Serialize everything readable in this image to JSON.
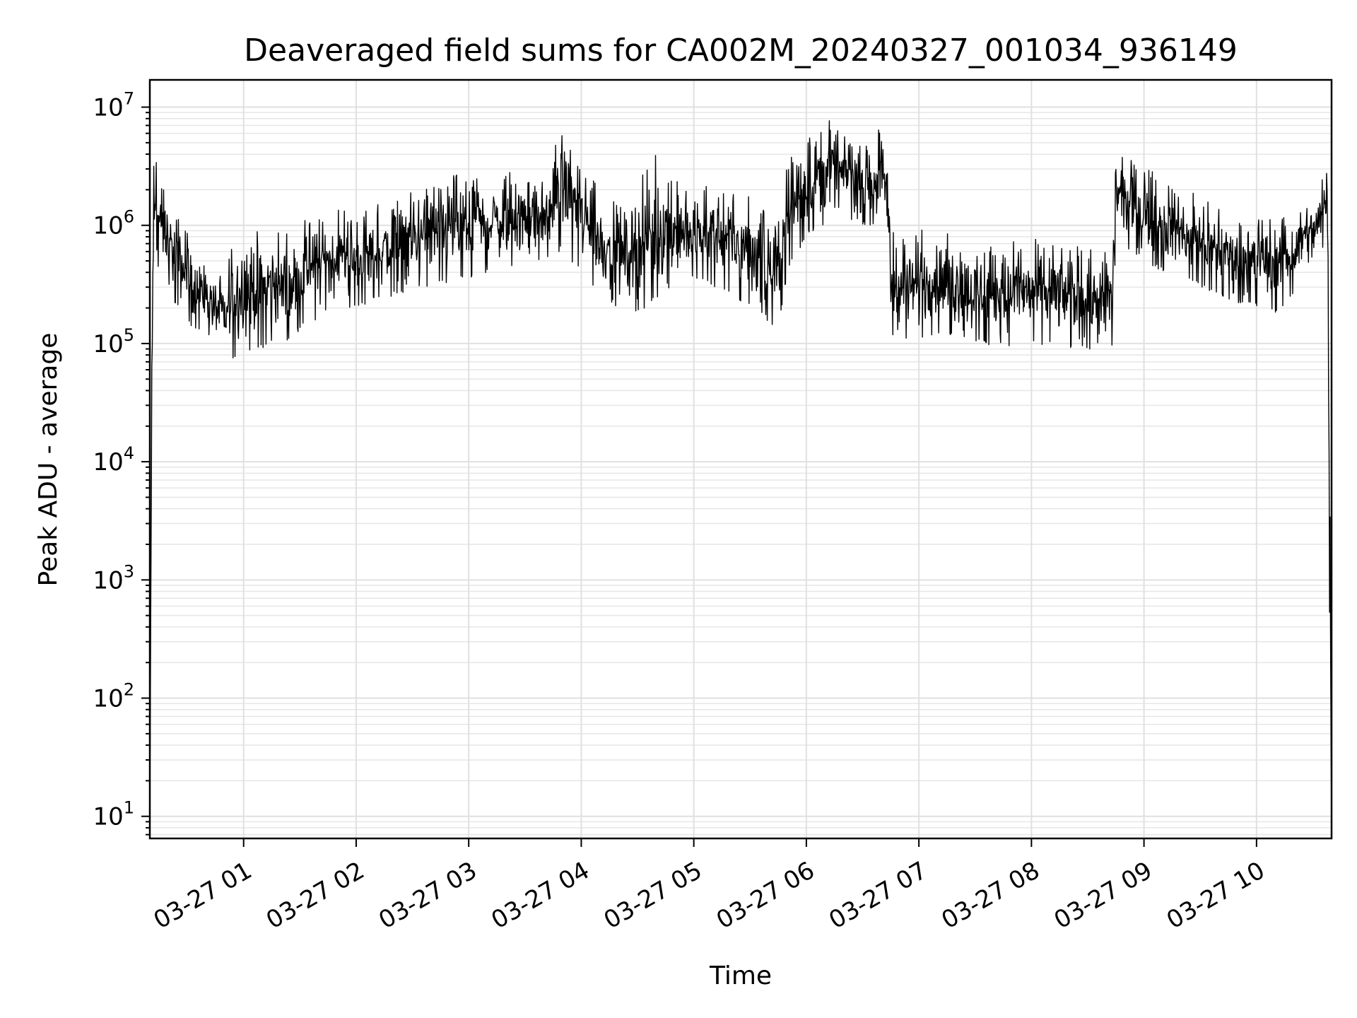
{
  "chart_data": {
    "type": "line",
    "title": "Deaveraged field sums for CA002M_20240327_001034_936149",
    "xlabel": "Time",
    "ylabel": "Peak ADU - average",
    "y_scale": "log",
    "ylim": [
      6.5,
      17000000
    ],
    "xlim": [
      "2024-03-27 00:10:00",
      "2024-03-27 10:40:00"
    ],
    "grid": "major and minor",
    "line_color": "#000000",
    "x_ticks": [
      {
        "value": "2024-03-27 01:00",
        "label": "03-27 01"
      },
      {
        "value": "2024-03-27 02:00",
        "label": "03-27 02"
      },
      {
        "value": "2024-03-27 03:00",
        "label": "03-27 03"
      },
      {
        "value": "2024-03-27 04:00",
        "label": "03-27 04"
      },
      {
        "value": "2024-03-27 05:00",
        "label": "03-27 05"
      },
      {
        "value": "2024-03-27 06:00",
        "label": "03-27 06"
      },
      {
        "value": "2024-03-27 07:00",
        "label": "03-27 07"
      },
      {
        "value": "2024-03-27 08:00",
        "label": "03-27 08"
      },
      {
        "value": "2024-03-27 09:00",
        "label": "03-27 09"
      },
      {
        "value": "2024-03-27 10:00",
        "label": "03-27 10"
      }
    ],
    "y_ticks": [
      {
        "value": 10,
        "base": "10",
        "exp": "1"
      },
      {
        "value": 100,
        "base": "10",
        "exp": "2"
      },
      {
        "value": 1000,
        "base": "10",
        "exp": "3"
      },
      {
        "value": 10000,
        "base": "10",
        "exp": "4"
      },
      {
        "value": 100000,
        "base": "10",
        "exp": "5"
      },
      {
        "value": 1000000,
        "base": "10",
        "exp": "6"
      },
      {
        "value": 10000000,
        "base": "10",
        "exp": "7"
      }
    ],
    "series": [
      {
        "x": [
          "00:10",
          "00:11",
          "00:12",
          "00:13",
          "00:15",
          "00:18",
          "00:20",
          "00:25",
          "00:30",
          "00:35",
          "00:40",
          "00:45",
          "00:50",
          "00:55",
          "01:00",
          "01:05",
          "01:10",
          "01:15",
          "01:20",
          "01:25",
          "01:30",
          "01:35",
          "01:40",
          "01:45",
          "01:50",
          "01:55",
          "02:00",
          "02:10",
          "02:20",
          "02:30",
          "02:40",
          "02:50",
          "03:00",
          "03:10",
          "03:20",
          "03:30",
          "03:40",
          "03:45",
          "03:50",
          "04:00",
          "04:10",
          "04:20",
          "04:30",
          "04:40",
          "04:50",
          "05:00",
          "05:10",
          "05:20",
          "05:30",
          "05:40",
          "05:45",
          "05:50",
          "06:00",
          "06:10",
          "06:20",
          "06:30",
          "06:40",
          "06:43",
          "06:45",
          "06:50",
          "07:00",
          "07:10",
          "07:20",
          "07:30",
          "07:40",
          "07:50",
          "08:00",
          "08:10",
          "08:20",
          "08:30",
          "08:40",
          "08:43",
          "08:45",
          "08:50",
          "09:00",
          "09:10",
          "09:20",
          "09:30",
          "09:40",
          "09:50",
          "10:00",
          "10:10",
          "10:20",
          "10:30",
          "10:35",
          "10:38",
          "10:39",
          "10:40"
        ],
        "low": [
          10,
          13000,
          300000,
          500000,
          400000,
          350000,
          250000,
          200000,
          150000,
          130000,
          120000,
          100000,
          80000,
          75000,
          80000,
          85000,
          90000,
          95000,
          100000,
          110000,
          130000,
          150000,
          160000,
          170000,
          180000,
          190000,
          200000,
          230000,
          250000,
          280000,
          300000,
          320000,
          350000,
          400000,
          420000,
          450000,
          500000,
          550000,
          600000,
          400000,
          250000,
          200000,
          180000,
          220000,
          300000,
          350000,
          300000,
          250000,
          200000,
          150000,
          130000,
          400000,
          800000,
          1000000,
          1200000,
          1000000,
          900000,
          800000,
          110000,
          100000,
          110000,
          120000,
          110000,
          100000,
          95000,
          90000,
          95000,
          100000,
          90000,
          85000,
          85000,
          90000,
          700000,
          600000,
          500000,
          400000,
          350000,
          300000,
          250000,
          220000,
          200000,
          180000,
          250000,
          400000,
          600000,
          800000,
          10,
          10
        ],
        "high": [
          10,
          70000,
          3800000,
          4500000,
          2800000,
          2500000,
          1800000,
          1300000,
          900000,
          600000,
          500000,
          400000,
          350000,
          900000,
          1200000,
          1000000,
          900000,
          1100000,
          800000,
          900000,
          1000000,
          1300000,
          1200000,
          1400000,
          1500000,
          1300000,
          1200000,
          1500000,
          1800000,
          2000000,
          2400000,
          2800000,
          2500000,
          2700000,
          3000000,
          2600000,
          2400000,
          4000000,
          8500000,
          3500000,
          2000000,
          1500000,
          2500000,
          4000000,
          2500000,
          2000000,
          2500000,
          2000000,
          1800000,
          1600000,
          1500000,
          3500000,
          7000000,
          8500000,
          6000000,
          5500000,
          7500000,
          7000000,
          900000,
          800000,
          900000,
          1000000,
          800000,
          700000,
          700000,
          750000,
          800000,
          700000,
          750000,
          700000,
          600000,
          700000,
          5000000,
          4000000,
          3500000,
          2500000,
          2000000,
          1800000,
          1500000,
          1300000,
          1200000,
          1300000,
          1500000,
          1800000,
          2500000,
          3500000,
          3500000,
          10
        ]
      }
    ]
  }
}
